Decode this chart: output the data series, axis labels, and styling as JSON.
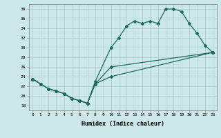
{
  "xlabel": "Humidex (Indice chaleur)",
  "bg_color": "#cde8e8",
  "grid_color": "#aacece",
  "line_color": "#1a6b5e",
  "xlim": [
    -0.5,
    23.5
  ],
  "ylim": [
    17,
    39
  ],
  "yticks": [
    18,
    20,
    22,
    24,
    26,
    28,
    30,
    32,
    34,
    36,
    38
  ],
  "xticks": [
    0,
    1,
    2,
    3,
    4,
    5,
    6,
    7,
    8,
    9,
    10,
    11,
    12,
    13,
    14,
    15,
    16,
    17,
    18,
    19,
    20,
    21,
    22,
    23
  ],
  "line1_x": [
    0,
    1,
    2,
    3,
    4,
    5,
    6,
    7,
    8,
    10,
    11,
    12,
    13,
    14,
    15,
    16,
    17,
    18,
    19,
    20,
    21,
    22,
    23
  ],
  "line1_y": [
    23.5,
    22.5,
    21.5,
    21.0,
    20.5,
    19.5,
    19.0,
    18.5,
    23.0,
    30.0,
    32.0,
    34.5,
    35.5,
    35.0,
    35.5,
    35.0,
    38.0,
    38.0,
    37.5,
    35.0,
    33.0,
    30.5,
    29.0
  ],
  "line2_x": [
    0,
    1,
    2,
    3,
    4,
    5,
    6,
    7,
    8,
    10,
    23
  ],
  "line2_y": [
    23.5,
    22.5,
    21.5,
    21.0,
    20.5,
    19.5,
    19.0,
    18.5,
    22.5,
    26.0,
    29.0
  ],
  "line3_x": [
    0,
    1,
    2,
    3,
    4,
    5,
    6,
    7,
    8,
    10,
    23
  ],
  "line3_y": [
    23.5,
    22.5,
    21.5,
    21.0,
    20.5,
    19.5,
    19.0,
    18.5,
    22.5,
    24.0,
    29.0
  ]
}
